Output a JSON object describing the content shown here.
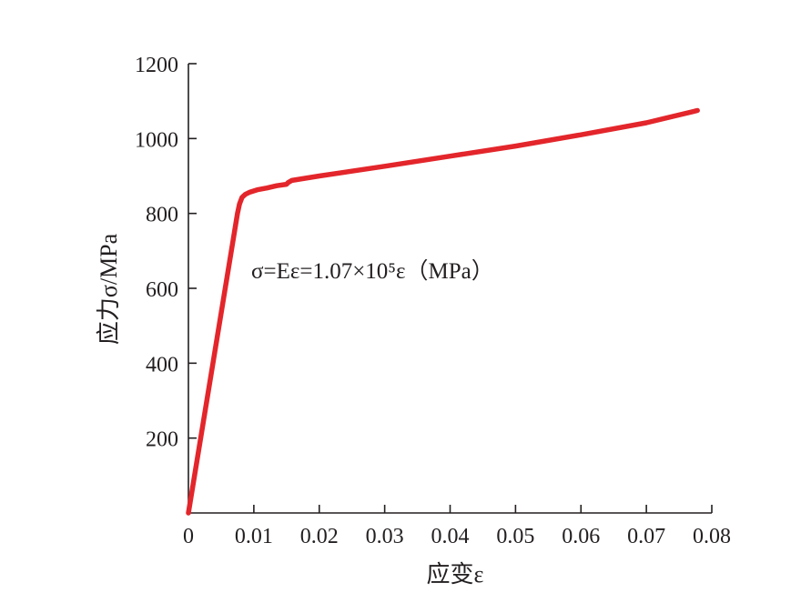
{
  "chart_data": {
    "type": "line",
    "title": "",
    "xlabel": "应变ε",
    "ylabel": "应力σ/MPa",
    "xlim": [
      0,
      0.08
    ],
    "ylim": [
      0,
      1200
    ],
    "x_ticks": [
      0,
      0.01,
      0.02,
      0.03,
      0.04,
      0.05,
      0.06,
      0.07,
      0.08
    ],
    "x_tick_labels": [
      "0",
      "0.01",
      "0.02",
      "0.03",
      "0.04",
      "0.05",
      "0.06",
      "0.07",
      "0.08"
    ],
    "y_ticks": [
      200,
      400,
      600,
      800,
      1000,
      1200
    ],
    "y_tick_labels": [
      "200",
      "400",
      "600",
      "800",
      "1000",
      "1200"
    ],
    "grid": false,
    "legend": "none",
    "series_color": "#e3262b",
    "annotation": "σ=Eε=1.07×10⁵ε（MPa）",
    "series": [
      {
        "x": [
          0,
          0.0075,
          0.0078,
          0.0082,
          0.0087,
          0.0094,
          0.0105,
          0.012,
          0.0135,
          0.015,
          0.0152,
          0.0158,
          0.02,
          0.03,
          0.04,
          0.05,
          0.06,
          0.07,
          0.0778
        ],
        "y": [
          0,
          800,
          825,
          843,
          851,
          857,
          863,
          868,
          874,
          878,
          882,
          888,
          900,
          926,
          953,
          980,
          1010,
          1042,
          1075
        ]
      }
    ]
  }
}
